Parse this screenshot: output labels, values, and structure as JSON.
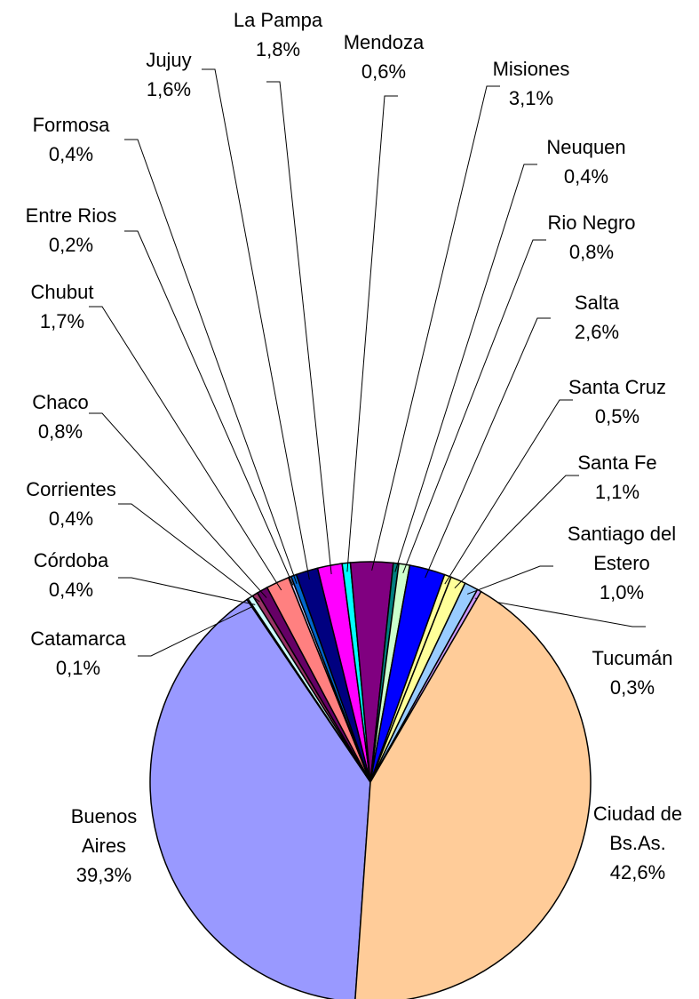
{
  "chart_data": {
    "type": "pie",
    "categories": [
      "Buenos Aires",
      "Catamarca",
      "Córdoba",
      "Corrientes",
      "Chaco",
      "Chubut",
      "Entre Rios",
      "Formosa",
      "Jujuy",
      "La Pampa",
      "Mendoza",
      "Misiones",
      "Neuquen",
      "Rio Negro",
      "Salta",
      "Santa Cruz",
      "Santa Fe",
      "Santiago del Estero",
      "Tucumán",
      "Ciudad de Bs.As."
    ],
    "values": [
      39.3,
      0.1,
      0.4,
      0.4,
      0.8,
      1.7,
      0.2,
      0.4,
      1.6,
      1.8,
      0.6,
      3.1,
      0.4,
      0.8,
      2.6,
      0.5,
      1.1,
      1.0,
      0.3,
      42.6
    ],
    "value_labels": [
      "39,3%",
      "0,1%",
      "0,4%",
      "0,4%",
      "0,8%",
      "1,7%",
      "0,2%",
      "0,4%",
      "1,6%",
      "1,8%",
      "0,6%",
      "3,1%",
      "0,4%",
      "0,8%",
      "2,6%",
      "0,5%",
      "1,1%",
      "1,0%",
      "0,3%",
      "42,6%"
    ],
    "colors": [
      "#9999FF",
      "#FFFFCC",
      "#CCFFFF",
      "#993366",
      "#660066",
      "#FF8080",
      "#CCCCFF",
      "#0066CC",
      "#000080",
      "#FF00FF",
      "#00FFFF",
      "#800080",
      "#008080",
      "#CCFFCC",
      "#0000FF",
      "#FFFF99",
      "#FFFF99",
      "#99CCFF",
      "#CC99FF",
      "#FFCC99"
    ]
  }
}
